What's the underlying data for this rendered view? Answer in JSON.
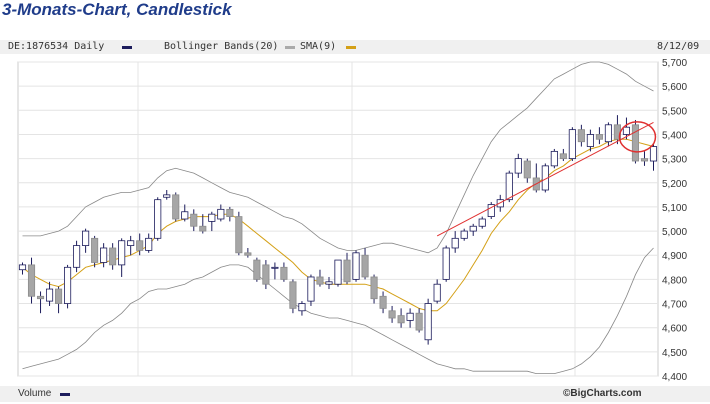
{
  "header": {
    "title": "3-Monats-Chart, Candlestick"
  },
  "legend": {
    "symbol": "DE:1876534 Daily",
    "bollinger": "Bollinger Bands(20)",
    "sma": "SMA(9)",
    "date": "8/12/09"
  },
  "footer": {
    "volume": "Volume",
    "copyright": "©BigCharts.com"
  },
  "colors": {
    "up_fill": "#ffffff",
    "down_fill": "#a6a6a6",
    "candle_outline": "#1c1c5c",
    "sma": "#d4a017",
    "bollinger": "#888888",
    "trendline": "#e03030",
    "highlight": "#e03030",
    "legend_daily": "#1c1c5c",
    "legend_bollinger": "#aaaaaa"
  },
  "chart_data": {
    "type": "candlestick",
    "ylim": [
      4400,
      5700
    ],
    "y_ticks": [
      "5,700",
      "5,600",
      "5,500",
      "5,400",
      "5,300",
      "5,200",
      "5,100",
      "5,000",
      "4,900",
      "4,800",
      "4,700",
      "4,600",
      "4,500",
      "4,400"
    ],
    "candles": [
      {
        "o": 4840,
        "h": 4870,
        "l": 4820,
        "c": 4860
      },
      {
        "o": 4860,
        "h": 4890,
        "l": 4700,
        "c": 4730
      },
      {
        "o": 4730,
        "h": 4750,
        "l": 4660,
        "c": 4720
      },
      {
        "o": 4710,
        "h": 4790,
        "l": 4690,
        "c": 4760
      },
      {
        "o": 4760,
        "h": 4770,
        "l": 4660,
        "c": 4700
      },
      {
        "o": 4700,
        "h": 4860,
        "l": 4680,
        "c": 4850
      },
      {
        "o": 4850,
        "h": 4960,
        "l": 4830,
        "c": 4940
      },
      {
        "o": 4940,
        "h": 5010,
        "l": 4910,
        "c": 5000
      },
      {
        "o": 4970,
        "h": 4980,
        "l": 4850,
        "c": 4870
      },
      {
        "o": 4870,
        "h": 4950,
        "l": 4850,
        "c": 4930
      },
      {
        "o": 4930,
        "h": 4950,
        "l": 4840,
        "c": 4860
      },
      {
        "o": 4860,
        "h": 4970,
        "l": 4810,
        "c": 4960
      },
      {
        "o": 4940,
        "h": 4980,
        "l": 4900,
        "c": 4960
      },
      {
        "o": 4960,
        "h": 4990,
        "l": 4900,
        "c": 4920
      },
      {
        "o": 4920,
        "h": 4990,
        "l": 4910,
        "c": 4970
      },
      {
        "o": 4970,
        "h": 5140,
        "l": 4960,
        "c": 5130
      },
      {
        "o": 5140,
        "h": 5170,
        "l": 5130,
        "c": 5150
      },
      {
        "o": 5150,
        "h": 5160,
        "l": 5040,
        "c": 5050
      },
      {
        "o": 5050,
        "h": 5110,
        "l": 5040,
        "c": 5080
      },
      {
        "o": 5070,
        "h": 5090,
        "l": 5000,
        "c": 5020
      },
      {
        "o": 5020,
        "h": 5070,
        "l": 4990,
        "c": 5000
      },
      {
        "o": 5040,
        "h": 5080,
        "l": 5000,
        "c": 5070
      },
      {
        "o": 5050,
        "h": 5110,
        "l": 5040,
        "c": 5090
      },
      {
        "o": 5090,
        "h": 5100,
        "l": 5040,
        "c": 5060
      },
      {
        "o": 5060,
        "h": 5080,
        "l": 4900,
        "c": 4910
      },
      {
        "o": 4910,
        "h": 4930,
        "l": 4890,
        "c": 4900
      },
      {
        "o": 4880,
        "h": 4890,
        "l": 4790,
        "c": 4800
      },
      {
        "o": 4860,
        "h": 4880,
        "l": 4760,
        "c": 4780
      },
      {
        "o": 4850,
        "h": 4870,
        "l": 4800,
        "c": 4850
      },
      {
        "o": 4850,
        "h": 4870,
        "l": 4790,
        "c": 4800
      },
      {
        "o": 4790,
        "h": 4800,
        "l": 4660,
        "c": 4680
      },
      {
        "o": 4670,
        "h": 4710,
        "l": 4650,
        "c": 4700
      },
      {
        "o": 4710,
        "h": 4820,
        "l": 4690,
        "c": 4810
      },
      {
        "o": 4810,
        "h": 4840,
        "l": 4770,
        "c": 4780
      },
      {
        "o": 4780,
        "h": 4810,
        "l": 4760,
        "c": 4790
      },
      {
        "o": 4780,
        "h": 4880,
        "l": 4770,
        "c": 4880
      },
      {
        "o": 4880,
        "h": 4910,
        "l": 4780,
        "c": 4790
      },
      {
        "o": 4800,
        "h": 4920,
        "l": 4790,
        "c": 4910
      },
      {
        "o": 4900,
        "h": 4930,
        "l": 4800,
        "c": 4810
      },
      {
        "o": 4810,
        "h": 4820,
        "l": 4700,
        "c": 4720
      },
      {
        "o": 4730,
        "h": 4750,
        "l": 4660,
        "c": 4680
      },
      {
        "o": 4670,
        "h": 4690,
        "l": 4620,
        "c": 4640
      },
      {
        "o": 4650,
        "h": 4680,
        "l": 4600,
        "c": 4620
      },
      {
        "o": 4630,
        "h": 4680,
        "l": 4600,
        "c": 4660
      },
      {
        "o": 4660,
        "h": 4680,
        "l": 4580,
        "c": 4590
      },
      {
        "o": 4550,
        "h": 4720,
        "l": 4530,
        "c": 4700
      },
      {
        "o": 4710,
        "h": 4800,
        "l": 4700,
        "c": 4780
      },
      {
        "o": 4800,
        "h": 4940,
        "l": 4790,
        "c": 4930
      },
      {
        "o": 4930,
        "h": 5000,
        "l": 4910,
        "c": 4970
      },
      {
        "o": 4970,
        "h": 5010,
        "l": 4960,
        "c": 5000
      },
      {
        "o": 5000,
        "h": 5030,
        "l": 4980,
        "c": 5020
      },
      {
        "o": 5020,
        "h": 5060,
        "l": 5010,
        "c": 5050
      },
      {
        "o": 5060,
        "h": 5120,
        "l": 5050,
        "c": 5110
      },
      {
        "o": 5100,
        "h": 5150,
        "l": 5080,
        "c": 5130
      },
      {
        "o": 5130,
        "h": 5250,
        "l": 5120,
        "c": 5240
      },
      {
        "o": 5240,
        "h": 5320,
        "l": 5220,
        "c": 5300
      },
      {
        "o": 5290,
        "h": 5300,
        "l": 5200,
        "c": 5220
      },
      {
        "o": 5220,
        "h": 5280,
        "l": 5160,
        "c": 5170
      },
      {
        "o": 5170,
        "h": 5280,
        "l": 5160,
        "c": 5270
      },
      {
        "o": 5270,
        "h": 5340,
        "l": 5260,
        "c": 5330
      },
      {
        "o": 5320,
        "h": 5340,
        "l": 5290,
        "c": 5300
      },
      {
        "o": 5300,
        "h": 5430,
        "l": 5290,
        "c": 5420
      },
      {
        "o": 5420,
        "h": 5440,
        "l": 5350,
        "c": 5370
      },
      {
        "o": 5350,
        "h": 5420,
        "l": 5330,
        "c": 5400
      },
      {
        "o": 5400,
        "h": 5430,
        "l": 5360,
        "c": 5380
      },
      {
        "o": 5370,
        "h": 5450,
        "l": 5350,
        "c": 5440
      },
      {
        "o": 5440,
        "h": 5480,
        "l": 5360,
        "c": 5380
      },
      {
        "o": 5400,
        "h": 5470,
        "l": 5380,
        "c": 5430
      },
      {
        "o": 5440,
        "h": 5460,
        "l": 5280,
        "c": 5290
      },
      {
        "o": 5300,
        "h": 5330,
        "l": 5270,
        "c": 5290
      },
      {
        "o": 5290,
        "h": 5360,
        "l": 5250,
        "c": 5350
      }
    ],
    "sma": [
      4850,
      4820,
      4800,
      4780,
      4770,
      4790,
      4820,
      4850,
      4860,
      4870,
      4880,
      4890,
      4900,
      4920,
      4940,
      4990,
      5020,
      5040,
      5050,
      5060,
      5060,
      5060,
      5070,
      5070,
      5050,
      5020,
      4990,
      4960,
      4930,
      4900,
      4870,
      4830,
      4800,
      4790,
      4780,
      4780,
      4780,
      4780,
      4780,
      4770,
      4760,
      4740,
      4720,
      4700,
      4680,
      4670,
      4670,
      4700,
      4750,
      4800,
      4860,
      4920,
      4990,
      5040,
      5080,
      5130,
      5170,
      5200,
      5220,
      5250,
      5270,
      5300,
      5320,
      5340,
      5350,
      5370,
      5380,
      5380,
      5370,
      5360,
      5350
    ],
    "bollinger_upper": [
      4980,
      4980,
      4980,
      4990,
      5000,
      5020,
      5060,
      5100,
      5120,
      5140,
      5150,
      5160,
      5160,
      5170,
      5180,
      5220,
      5250,
      5260,
      5250,
      5240,
      5220,
      5200,
      5180,
      5160,
      5150,
      5140,
      5120,
      5100,
      5080,
      5060,
      5050,
      5030,
      5000,
      4970,
      4950,
      4930,
      4920,
      4920,
      4930,
      4940,
      4950,
      4950,
      4940,
      4930,
      4920,
      4910,
      4930,
      4990,
      5070,
      5150,
      5230,
      5300,
      5370,
      5420,
      5450,
      5480,
      5510,
      5550,
      5590,
      5630,
      5650,
      5670,
      5690,
      5700,
      5700,
      5690,
      5670,
      5650,
      5620,
      5600,
      5580
    ],
    "bollinger_lower": [
      4430,
      4440,
      4450,
      4460,
      4470,
      4490,
      4510,
      4540,
      4580,
      4610,
      4630,
      4660,
      4700,
      4720,
      4750,
      4760,
      4760,
      4770,
      4780,
      4800,
      4810,
      4830,
      4850,
      4860,
      4860,
      4850,
      4820,
      4790,
      4760,
      4730,
      4700,
      4680,
      4660,
      4650,
      4640,
      4640,
      4630,
      4620,
      4610,
      4590,
      4570,
      4550,
      4530,
      4510,
      4490,
      4470,
      4450,
      4440,
      4430,
      4430,
      4420,
      4420,
      4420,
      4420,
      4420,
      4420,
      4420,
      4410,
      4410,
      4410,
      4420,
      4430,
      4450,
      4480,
      4520,
      4580,
      4650,
      4730,
      4820,
      4890,
      4930
    ],
    "trendline": {
      "start_index": 46,
      "start_value": 4980,
      "end_index": 70,
      "end_value": 5450
    },
    "highlight_index": 68
  }
}
